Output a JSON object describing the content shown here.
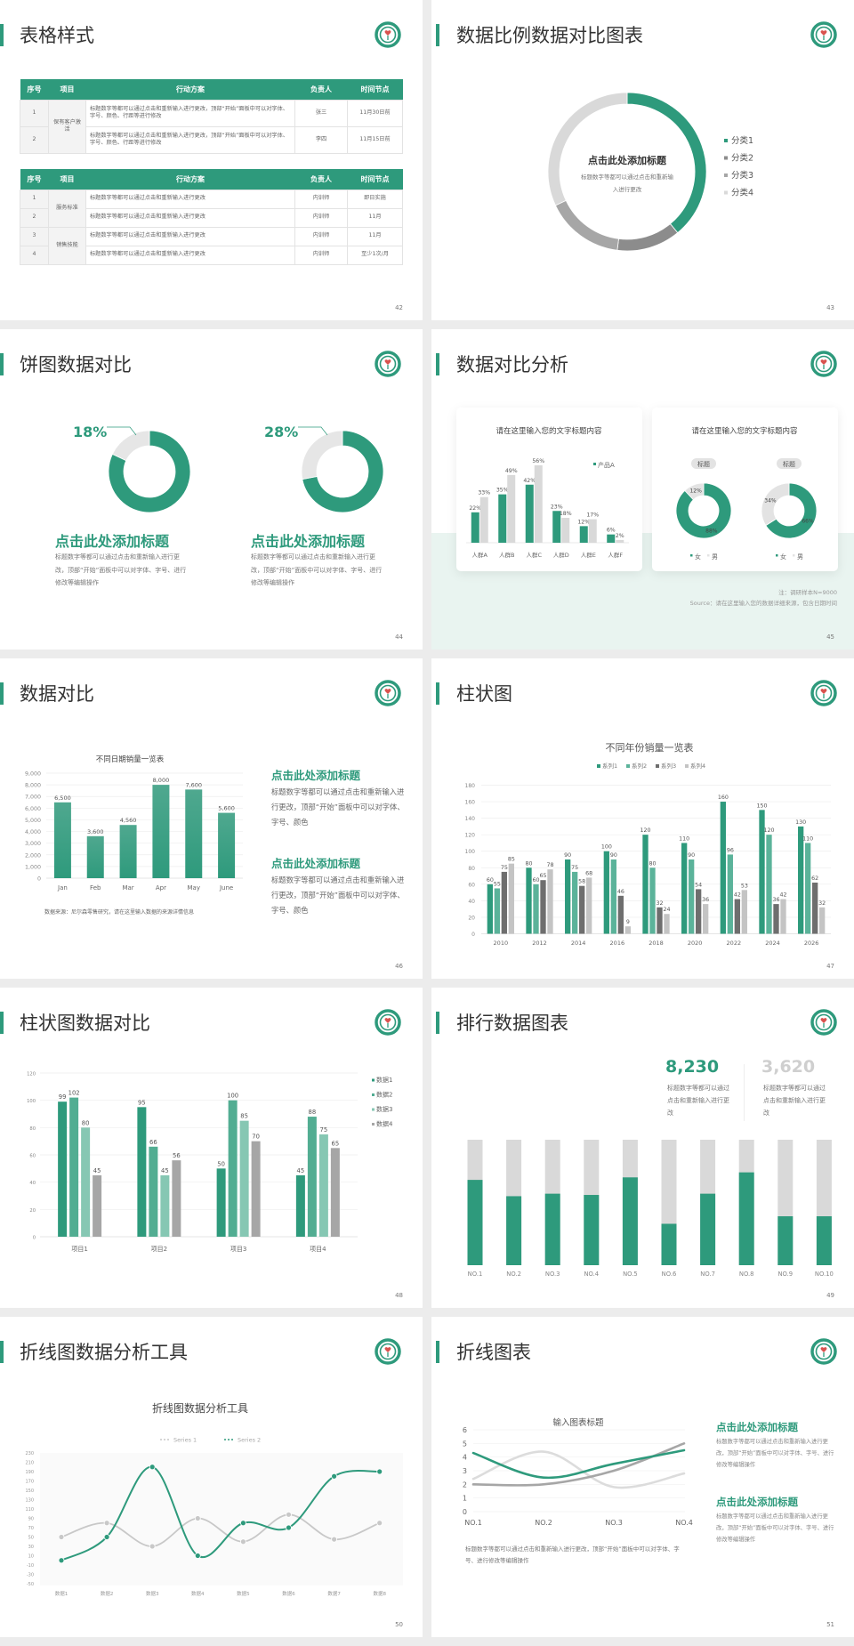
{
  "colors": {
    "green": "#2e9a7c",
    "green2": "#52ad92",
    "green3": "#86c7b3",
    "dark_gray": "#8c8c8c",
    "mid_gray": "#a6a6a6",
    "light_gray": "#d9d9d9",
    "background_mint": "#e9f4f0"
  },
  "logo_icon": "circular-green-emblem",
  "slides": [
    {
      "title": "表格样式",
      "page": "42",
      "tables": [
        {
          "headers": [
            "序号",
            "项目",
            "行动方案",
            "负责人",
            "时间节点"
          ],
          "groups": [
            {
              "project": "保有客户激活",
              "rows": [
                {
                  "no": "1",
                  "plan": "标题数字等都可以通过点击和重新输入进行更改，顶部“开始”面板中可以对字体、字号、颜色、行距等进行修改",
                  "owner": "张三",
                  "deadline": "11月30日前"
                },
                {
                  "no": "2",
                  "plan": "标题数字等都可以通过点击和重新输入进行更改，顶部“开始”面板中可以对字体、字号、颜色、行距等进行修改",
                  "owner": "李四",
                  "deadline": "11月15日前"
                }
              ]
            }
          ]
        },
        {
          "headers": [
            "序号",
            "项目",
            "行动方案",
            "负责人",
            "时间节点"
          ],
          "groups": [
            {
              "project": "服务标准",
              "rows": [
                {
                  "no": "1",
                  "plan": "标题数字等都可以通过点击和重新输入进行更改",
                  "owner": "内训师",
                  "deadline": "即日实施"
                },
                {
                  "no": "2",
                  "plan": "标题数字等都可以通过点击和重新输入进行更改",
                  "owner": "内训师",
                  "deadline": "11月"
                }
              ]
            },
            {
              "project": "销售技能",
              "rows": [
                {
                  "no": "3",
                  "plan": "标题数字等都可以通过点击和重新输入进行更改",
                  "owner": "内训师",
                  "deadline": "11月"
                },
                {
                  "no": "4",
                  "plan": "标题数字等都可以通过点击和重新输入进行更改",
                  "owner": "内训师",
                  "deadline": "至少1次/月"
                }
              ]
            }
          ]
        }
      ]
    },
    {
      "title": "数据比例数据对比图表",
      "page": "43",
      "center_title": "点击此处添加标题",
      "center_text": "标题数字等都可以通过点击和重新输入进行更改"
    },
    {
      "title": "饼图数据对比",
      "page": "44",
      "items": [
        {
          "heading": "点击此处添加标题",
          "text": "标题数字等都可以通过点击和重新输入进行更改，顶部“开始”面板中可以对字体、字号、进行修改等编辑操作"
        },
        {
          "heading": "点击此处添加标题",
          "text": "标题数字等都可以通过点击和重新输入进行更改，顶部“开始”面板中可以对字体、字号、进行修改等编辑操作"
        }
      ]
    },
    {
      "title": "数据对比分析",
      "page": "45",
      "note": "注：调研样本N=9000",
      "source": "Source：请在这里输入您的数据详细来源，包含日期时间"
    },
    {
      "title": "数据对比",
      "page": "46",
      "source": "数据来源：尼尔森零售研究，请在这里输入数据的来源详情信息",
      "items": [
        {
          "heading": "点击此处添加标题",
          "text": "标题数字等都可以通过点击和重新输入进行更改，顶部“开始”面板中可以对字体、字号、颜色"
        },
        {
          "heading": "点击此处添加标题",
          "text": "标题数字等都可以通过点击和重新输入进行更改，顶部“开始”面板中可以对字体、字号、颜色"
        }
      ]
    },
    {
      "title": "柱状图",
      "page": "47"
    },
    {
      "title": "柱状图数据对比",
      "page": "48"
    },
    {
      "title": "排行数据图表",
      "page": "49",
      "stats": [
        {
          "value": "8,230",
          "text": "标题数字等都可以通过点击和重新输入进行更改"
        },
        {
          "value": "3,620",
          "text": "标题数字等都可以通过点击和重新输入进行更改"
        }
      ]
    },
    {
      "title": "折线图数据分析工具",
      "page": "50"
    },
    {
      "title": "折线图表",
      "page": "51",
      "caption": "标题数字等都可以通过点击和重新输入进行更改，顶部“开始”面板中可以对字体、字号、进行修改等编辑操作",
      "items": [
        {
          "heading": "点击此处添加标题",
          "text": "标题数字等都可以通过点击和重新输入进行更改，顶部“开始”面板中可以对字体、字号、进行修改等编辑操作"
        },
        {
          "heading": "点击此处添加标题",
          "text": "标题数字等都可以通过点击和重新输入进行更改，顶部“开始”面板中可以对字体、字号、进行修改等编辑操作"
        }
      ]
    }
  ],
  "chart_data": [
    {
      "type": "pie",
      "variant": "donut",
      "categories": [
        "分类1",
        "分类2",
        "分类3",
        "分类4"
      ],
      "values": [
        39,
        13,
        16,
        32
      ],
      "colors": [
        "#2e9a7c",
        "#8c8c8c",
        "#a6a6a6",
        "#d9d9d9"
      ],
      "legend": "right"
    },
    {
      "type": "pie",
      "variant": "donut",
      "values": [
        82,
        18
      ],
      "label": "18%",
      "colors": [
        "#2e9a7c",
        "#e6e6e6"
      ]
    },
    {
      "type": "pie",
      "variant": "donut",
      "values": [
        72,
        28
      ],
      "label": "28%",
      "colors": [
        "#2e9a7c",
        "#e6e6e6"
      ]
    },
    {
      "type": "bar",
      "title": "请在这里输入您的文字标题内容",
      "categories": [
        "人群A",
        "人群B",
        "人群C",
        "人群D",
        "人群E",
        "人群F"
      ],
      "series": [
        {
          "name": "产品A",
          "values": [
            22,
            35,
            42,
            23,
            12,
            6
          ]
        },
        {
          "values": [
            33,
            49,
            56,
            18,
            17,
            2
          ]
        }
      ],
      "unit": "%",
      "colors": [
        "#2e9a7c",
        "#d9d9d9"
      ],
      "ylim": [
        0,
        56
      ],
      "legend": "top-right"
    },
    {
      "type": "pie",
      "variant": "donut",
      "title": "请在这里输入您的文字标题内容",
      "label": "标题",
      "categories": [
        "女",
        "男"
      ],
      "values": [
        88,
        12
      ],
      "colors": [
        "#2e9a7c",
        "#e3e3e3"
      ],
      "legend": "bottom"
    },
    {
      "type": "pie",
      "variant": "donut",
      "label": "标题",
      "categories": [
        "女",
        "男"
      ],
      "values": [
        66,
        34
      ],
      "colors": [
        "#2e9a7c",
        "#e3e3e3"
      ],
      "legend": "bottom"
    },
    {
      "type": "bar",
      "title": "不同日期销量一览表",
      "categories": [
        "Jan",
        "Feb",
        "Mar",
        "Apr",
        "May",
        "June"
      ],
      "values": [
        6500,
        3600,
        4560,
        8000,
        7600,
        5600
      ],
      "ylim": [
        0,
        9000
      ],
      "ytick_step": 1000,
      "grid": true
    },
    {
      "type": "bar",
      "title": "不同年份销量一览表",
      "categories": [
        "2010",
        "2012",
        "2014",
        "2016",
        "2018",
        "2020",
        "2022",
        "2024",
        "2026"
      ],
      "series": [
        {
          "name": "系列1",
          "values": [
            60,
            80,
            90,
            100,
            120,
            110,
            160,
            150,
            130
          ]
        },
        {
          "name": "系列2",
          "values": [
            55,
            60,
            75,
            90,
            80,
            90,
            96,
            120,
            110
          ]
        },
        {
          "name": "系列3",
          "values": [
            75,
            65,
            58,
            46,
            32,
            54,
            42,
            36,
            62
          ]
        },
        {
          "name": "系列4",
          "values": [
            85,
            78,
            68,
            9,
            24,
            36,
            53,
            42,
            32
          ]
        }
      ],
      "colors": [
        "#2e9a7c",
        "#5bb39a",
        "#6e6e6e",
        "#c4c4c4"
      ],
      "ylim": [
        0,
        180
      ],
      "ytick_step": 20,
      "grid": true,
      "legend": "top"
    },
    {
      "type": "bar",
      "categories": [
        "项目1",
        "项目2",
        "项目3",
        "项目4"
      ],
      "series": [
        {
          "name": "数据1",
          "values": [
            99,
            95,
            50,
            45
          ]
        },
        {
          "name": "数据2",
          "values": [
            102,
            66,
            100,
            88
          ]
        },
        {
          "name": "数据3",
          "values": [
            80,
            45,
            85,
            75
          ]
        },
        {
          "name": "数据4",
          "values": [
            45,
            56,
            70,
            65
          ]
        }
      ],
      "colors": [
        "#2e9a7c",
        "#52ad92",
        "#86c7b3",
        "#a6a6a6"
      ],
      "ylim": [
        0,
        120
      ],
      "ytick_step": 20,
      "grid": true,
      "legend": "right"
    },
    {
      "type": "bar",
      "variant": "progress",
      "categories": [
        "NO.1",
        "NO.2",
        "NO.3",
        "NO.4",
        "NO.5",
        "NO.6",
        "NO.7",
        "NO.8",
        "NO.9",
        "NO.10"
      ],
      "values": [
        68,
        55,
        57,
        56,
        70,
        33,
        57,
        74,
        39,
        39
      ],
      "ylim": [
        0,
        100
      ],
      "colors": [
        "#2e9a7c",
        "#d9d9d9"
      ]
    },
    {
      "type": "line",
      "title": "折线图数据分析工具",
      "categories": [
        "数据1",
        "数据2",
        "数据3",
        "数据4",
        "数据5",
        "数据6",
        "数据7",
        "数据8"
      ],
      "series": [
        {
          "name": "Series 1",
          "values": [
            50,
            80,
            30,
            90,
            40,
            98,
            45,
            80
          ]
        },
        {
          "name": "Series 2",
          "values": [
            0,
            50,
            200,
            10,
            80,
            70,
            180,
            190
          ]
        }
      ],
      "colors": [
        "#c8c8c8",
        "#2e9a7c"
      ],
      "ylim": [
        -50,
        230
      ],
      "ytick_step": 20,
      "legend": "top"
    },
    {
      "type": "line",
      "title": "输入图表标题",
      "categories": [
        "NO.1",
        "NO.2",
        "NO.3",
        "NO.4"
      ],
      "series": [
        {
          "values": [
            4.3,
            2.5,
            3.5,
            4.5
          ]
        },
        {
          "values": [
            2,
            2,
            3,
            5
          ]
        },
        {
          "values": [
            2.4,
            4.4,
            1.8,
            2.8
          ]
        }
      ],
      "colors": [
        "#2e9a7c",
        "#a6a6a6",
        "#dcdcdc"
      ],
      "ylim": [
        0,
        6
      ],
      "ytick_step": 1,
      "grid": true
    }
  ]
}
